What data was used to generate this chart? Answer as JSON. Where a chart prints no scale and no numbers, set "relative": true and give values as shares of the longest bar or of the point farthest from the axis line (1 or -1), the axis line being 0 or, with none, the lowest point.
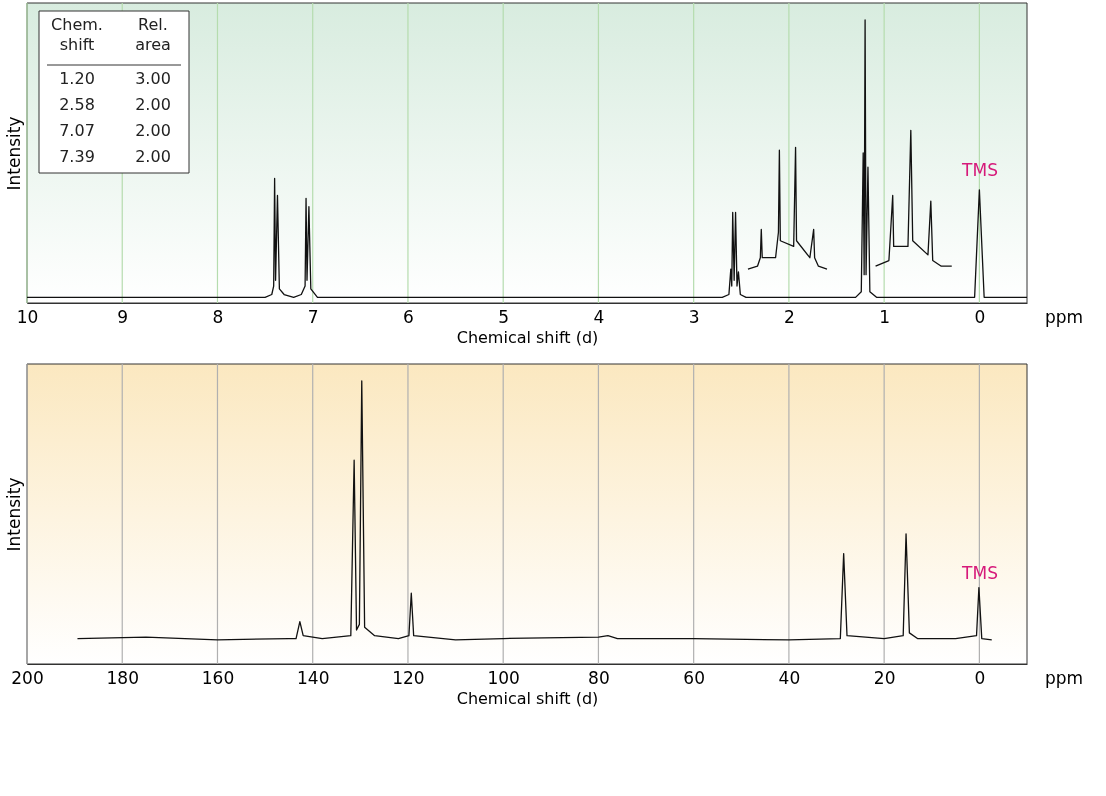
{
  "chart_data": [
    {
      "type": "line",
      "relative": true,
      "xlabel": "Chemical shift (d)",
      "ylabel": "Intensity",
      "xlim": [
        10,
        -0.5
      ],
      "xticks": [
        10,
        9,
        8,
        7,
        6,
        5,
        4,
        3,
        2,
        1,
        0
      ],
      "grid": "x",
      "annotations": [
        "Chem.\nshift",
        "Rel.\narea",
        "1.20",
        "3.00",
        "2.58",
        "2.00",
        "7.07",
        "2.00",
        "7.39",
        "2.00",
        "TMS",
        "ppm"
      ],
      "series": [
        {
          "color": "#111111",
          "x": [
            10.0,
            7.5,
            7.43,
            7.41,
            7.4,
            7.39,
            7.37,
            7.35,
            7.3,
            7.2,
            7.12,
            7.08,
            7.07,
            7.06,
            7.04,
            7.02,
            6.95,
            2.7,
            2.63,
            2.61,
            2.6,
            2.59,
            2.575,
            2.56,
            2.545,
            2.53,
            2.51,
            2.45,
            1.3,
            1.24,
            1.22,
            1.21,
            1.2,
            1.19,
            1.17,
            1.15,
            1.08,
            0.05,
            0.0,
            -0.05,
            -0.5
          ],
          "values": [
            0.02,
            0.02,
            0.03,
            0.06,
            0.44,
            0.08,
            0.38,
            0.05,
            0.03,
            0.02,
            0.03,
            0.06,
            0.37,
            0.08,
            0.34,
            0.05,
            0.02,
            0.02,
            0.03,
            0.12,
            0.06,
            0.32,
            0.08,
            0.32,
            0.06,
            0.11,
            0.03,
            0.02,
            0.02,
            0.04,
            0.53,
            0.1,
            1.0,
            0.1,
            0.48,
            0.04,
            0.02,
            0.02,
            0.4,
            0.02,
            0.02
          ]
        },
        {
          "color": "#111111",
          "x": [
            2.43,
            2.33,
            2.3,
            2.29,
            2.28,
            2.14,
            2.11,
            2.1,
            2.09,
            1.95,
            1.93,
            1.92,
            1.78,
            1.74,
            1.73,
            1.69,
            1.6
          ],
          "values": [
            0.12,
            0.13,
            0.16,
            0.26,
            0.16,
            0.16,
            0.25,
            0.54,
            0.22,
            0.2,
            0.55,
            0.22,
            0.16,
            0.26,
            0.16,
            0.13,
            0.12
          ]
        },
        {
          "color": "#111111",
          "x": [
            1.09,
            0.95,
            0.91,
            0.9,
            0.75,
            0.72,
            0.7,
            0.54,
            0.51,
            0.49,
            0.4,
            0.29
          ],
          "values": [
            0.13,
            0.15,
            0.38,
            0.2,
            0.2,
            0.61,
            0.22,
            0.17,
            0.36,
            0.15,
            0.13,
            0.13
          ]
        }
      ]
    },
    {
      "type": "line",
      "relative": true,
      "xlabel": "Chemical shift (d)",
      "ylabel": "Intensity",
      "xlim": [
        200,
        -10
      ],
      "xticks": [
        200,
        180,
        160,
        140,
        120,
        100,
        80,
        60,
        40,
        20,
        0
      ],
      "grid": "x",
      "annotations": [
        "TMS",
        "ppm"
      ],
      "series": [
        {
          "color": "#111111",
          "x": [
            189.4,
            175,
            160,
            145,
            143.5,
            142.7,
            142,
            138,
            132,
            131.3,
            130.8,
            130.2,
            129.7,
            129.1,
            127,
            122,
            119.8,
            119.3,
            118.8,
            110,
            100,
            80,
            78,
            76,
            60,
            40,
            29.2,
            28.5,
            27.8,
            20,
            16,
            15.4,
            14.7,
            13,
            5,
            0.6,
            0.1,
            -0.5,
            -2.6
          ],
          "values": [
            0.09,
            0.095,
            0.085,
            0.09,
            0.09,
            0.15,
            0.1,
            0.09,
            0.1,
            0.72,
            0.12,
            0.14,
            1.0,
            0.13,
            0.1,
            0.09,
            0.1,
            0.25,
            0.1,
            0.085,
            0.09,
            0.095,
            0.1,
            0.09,
            0.09,
            0.085,
            0.09,
            0.39,
            0.1,
            0.09,
            0.1,
            0.46,
            0.11,
            0.09,
            0.09,
            0.1,
            0.27,
            0.09,
            0.085
          ]
        }
      ]
    }
  ]
}
